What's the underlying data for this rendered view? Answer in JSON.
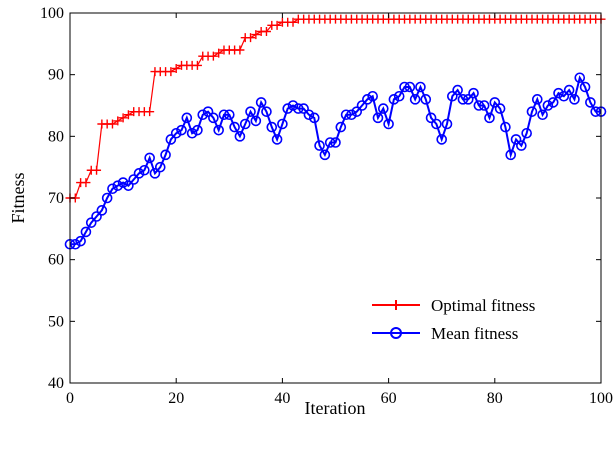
{
  "chart_data": {
    "type": "line",
    "xlabel": "Iteration",
    "ylabel": "Fitness",
    "xlim": [
      0,
      100
    ],
    "ylim": [
      40,
      100
    ],
    "xticks": [
      "0",
      "20",
      "40",
      "60",
      "80",
      "100"
    ],
    "yticks": [
      "40",
      "50",
      "60",
      "70",
      "80",
      "90",
      "100"
    ],
    "grid": false,
    "legend_position": "lower-right",
    "series": [
      {
        "name": "Optimal fitness",
        "color": "#ff0000",
        "marker": "plus",
        "x": [
          0,
          1,
          2,
          3,
          4,
          5,
          6,
          7,
          8,
          9,
          10,
          11,
          12,
          13,
          14,
          15,
          16,
          17,
          18,
          19,
          20,
          21,
          22,
          23,
          24,
          25,
          26,
          27,
          28,
          29,
          30,
          31,
          32,
          33,
          34,
          35,
          36,
          37,
          38,
          39,
          40,
          41,
          42,
          43,
          44,
          45,
          46,
          47,
          48,
          49,
          50,
          51,
          52,
          53,
          54,
          55,
          56,
          57,
          58,
          59,
          60,
          61,
          62,
          63,
          64,
          65,
          66,
          67,
          68,
          69,
          70,
          71,
          72,
          73,
          74,
          75,
          76,
          77,
          78,
          79,
          80,
          81,
          82,
          83,
          84,
          85,
          86,
          87,
          88,
          89,
          90,
          91,
          92,
          93,
          94,
          95,
          96,
          97,
          98,
          99,
          100
        ],
        "y": [
          70,
          70,
          72.5,
          72.5,
          74.5,
          74.5,
          82,
          82,
          82,
          82.5,
          83,
          83.5,
          84,
          84,
          84,
          84,
          90.5,
          90.5,
          90.5,
          90.5,
          91,
          91.5,
          91.5,
          91.5,
          91.5,
          93,
          93,
          93,
          93.5,
          94,
          94,
          94,
          94,
          96,
          96,
          96.5,
          97,
          97,
          98,
          98,
          98.5,
          98.5,
          98.5,
          99,
          99,
          99,
          99,
          99,
          99,
          99,
          99,
          99,
          99,
          99,
          99,
          99,
          99,
          99,
          99,
          99,
          99,
          99,
          99,
          99,
          99,
          99,
          99,
          99,
          99,
          99,
          99,
          99,
          99,
          99,
          99,
          99,
          99,
          99,
          99,
          99,
          99,
          99,
          99,
          99,
          99,
          99,
          99,
          99,
          99,
          99,
          99,
          99,
          99,
          99,
          99,
          99,
          99,
          99,
          99,
          99,
          99
        ]
      },
      {
        "name": "Mean fitness",
        "color": "#0000ff",
        "marker": "circle",
        "x": [
          0,
          1,
          2,
          3,
          4,
          5,
          6,
          7,
          8,
          9,
          10,
          11,
          12,
          13,
          14,
          15,
          16,
          17,
          18,
          19,
          20,
          21,
          22,
          23,
          24,
          25,
          26,
          27,
          28,
          29,
          30,
          31,
          32,
          33,
          34,
          35,
          36,
          37,
          38,
          39,
          40,
          41,
          42,
          43,
          44,
          45,
          46,
          47,
          48,
          49,
          50,
          51,
          52,
          53,
          54,
          55,
          56,
          57,
          58,
          59,
          60,
          61,
          62,
          63,
          64,
          65,
          66,
          67,
          68,
          69,
          70,
          71,
          72,
          73,
          74,
          75,
          76,
          77,
          78,
          79,
          80,
          81,
          82,
          83,
          84,
          85,
          86,
          87,
          88,
          89,
          90,
          91,
          92,
          93,
          94,
          95,
          96,
          97,
          98,
          99,
          100
        ],
        "y": [
          62.5,
          62.5,
          63,
          64.5,
          66,
          67,
          68,
          70,
          71.5,
          72,
          72.5,
          72,
          73,
          74,
          74.5,
          76.5,
          74,
          75,
          77,
          79.5,
          80.5,
          81,
          83,
          80.5,
          81,
          83.5,
          84,
          83,
          81,
          83.5,
          83.5,
          81.5,
          80,
          82,
          84,
          82.5,
          85.5,
          84,
          81.5,
          79.5,
          82,
          84.5,
          85,
          84.5,
          84.5,
          83.5,
          83,
          78.5,
          77,
          79,
          79,
          81.5,
          83.5,
          83.5,
          84,
          85,
          86,
          86.5,
          83,
          84.5,
          82,
          86,
          86.5,
          88,
          88,
          86,
          88,
          86,
          83,
          82,
          79.5,
          82,
          86.5,
          87.5,
          86,
          86,
          87,
          85,
          85,
          83,
          85.5,
          84.5,
          81.5,
          77,
          79.5,
          78.5,
          80.5,
          84,
          86,
          83.5,
          85,
          85.5,
          87,
          86.5,
          87.5,
          86,
          89.5,
          88,
          85.5,
          84,
          84
        ]
      }
    ]
  }
}
